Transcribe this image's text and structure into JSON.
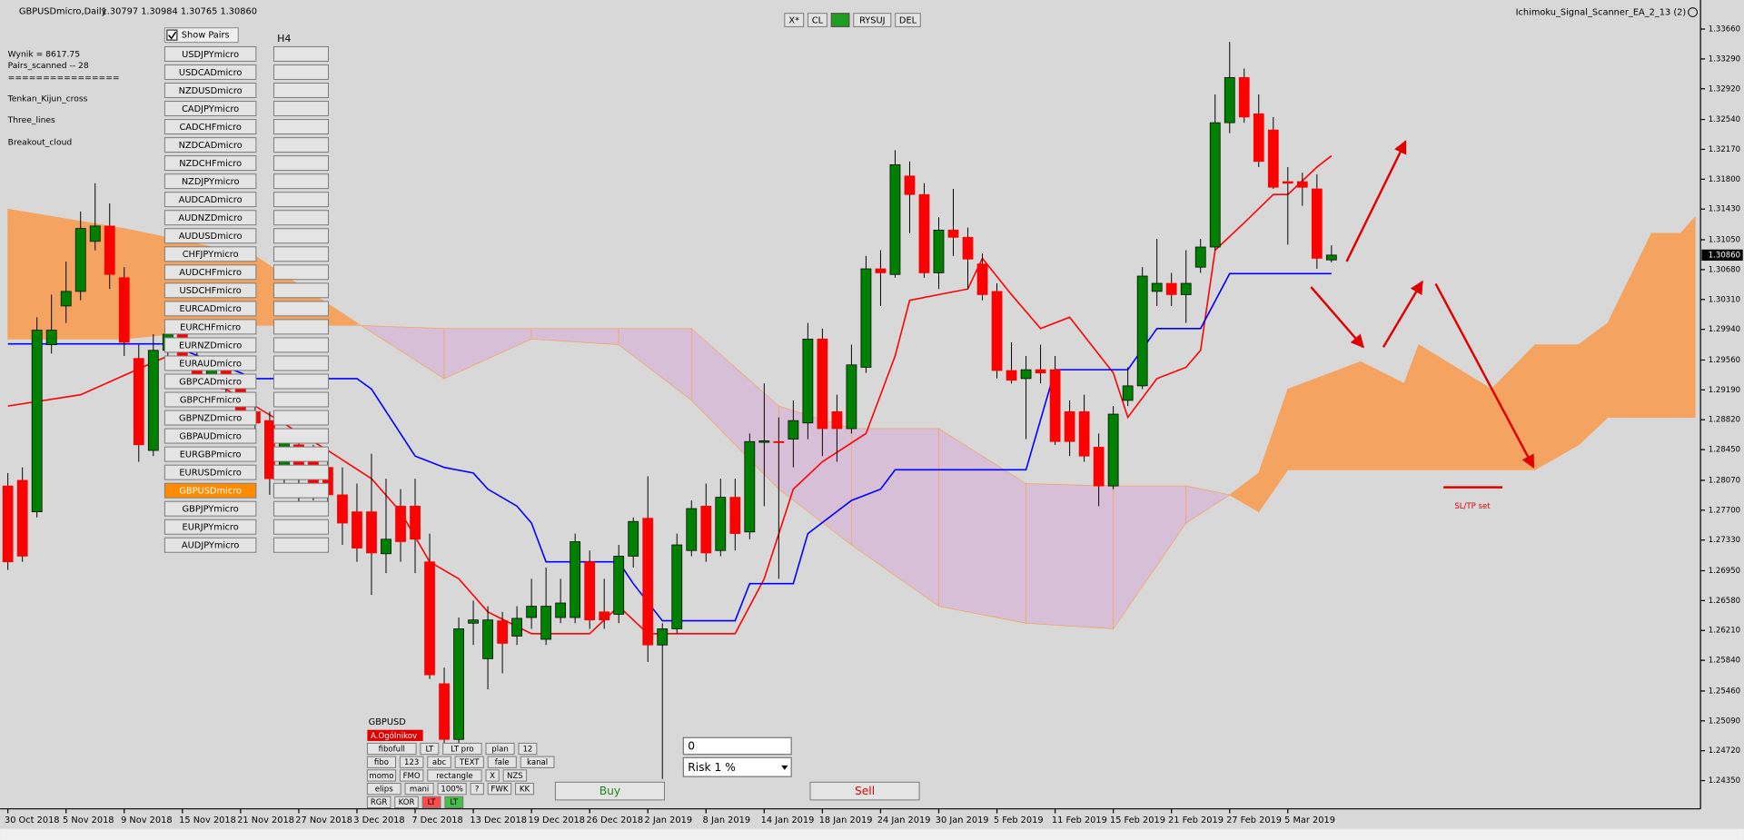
{
  "header": {
    "symbol": "GBPUSDmicro,Daily",
    "prices": "1.30797 1.30984 1.30765 1.30860",
    "ea": "Ichimoku_Signal_Scanner_EA_2_13 (2)"
  },
  "toolbar": [
    "X*",
    "CL",
    "RYSUJ",
    "DEL"
  ],
  "scanner": {
    "results": [
      "Wynik = 8617.75",
      "Pairs_scanned -- 28",
      "================",
      "Tenkan_Kijun_cross",
      "Three_lines",
      "Breakout_cloud"
    ],
    "show_pairs": "Show Pairs",
    "timeframe": "H4",
    "active": "GBPUSDmicro",
    "pairs": [
      "USDJPYmicro",
      "USDCADmicro",
      "NZDUSDmicro",
      "CADJPYmicro",
      "CADCHFmicro",
      "NZDCADmicro",
      "NZDCHFmicro",
      "NZDJPYmicro",
      "AUDCADmicro",
      "AUDNZDmicro",
      "AUDUSDmicro",
      "CHFJPYmicro",
      "AUDCHFmicro",
      "USDCHFmicro",
      "EURCADmicro",
      "EURCHFmicro",
      "EURNZDmicro",
      "EURAUDmicro",
      "GBPCADmicro",
      "GBPCHFmicro",
      "GBPNZDmicro",
      "GBPAUDmicro",
      "EURGBPmicro",
      "EURUSDmicro",
      "GBPUSDmicro",
      "GBPJPYmicro",
      "EURJPYmicro",
      "AUDJPYmicro"
    ]
  },
  "tools": {
    "symbol": "GBPUSD",
    "status": "A.Ogólnikov",
    "rows": [
      [
        "fibofull",
        "LT",
        "LT pro",
        "plan",
        "12"
      ],
      [
        "fibo",
        "123",
        "abc",
        "TEXT",
        "fale",
        "kanal"
      ],
      [
        "momo",
        "FMO",
        "rectangle",
        "X",
        "NZS"
      ],
      [
        "elips",
        "mani",
        "100%",
        "?",
        "FWK",
        "KK"
      ],
      [
        "RGR",
        "KOR",
        "LT",
        "LT"
      ]
    ]
  },
  "trade": {
    "lots": "0",
    "risk": "Risk 1 %",
    "buy": "Buy",
    "sell": "Sell"
  },
  "annotation": "SL/TP set",
  "chart_data": {
    "type": "candlestick",
    "up_color": "#008000",
    "down_color": "#ff0000",
    "categories": [
      "30 Oct 2018",
      null,
      null,
      null,
      "5 Nov 2018",
      null,
      null,
      null,
      "9 Nov 2018",
      null,
      null,
      null,
      "15 Nov 2018",
      null,
      null,
      null,
      "21 Nov 2018",
      null,
      null,
      null,
      "27 Nov 2018",
      null,
      null,
      null,
      "3 Dec 2018",
      null,
      null,
      null,
      "7 Dec 2018",
      null,
      null,
      null,
      "13 Dec 2018",
      null,
      null,
      null,
      "19 Dec 2018",
      null,
      null,
      null,
      "26 Dec 2018",
      null,
      null,
      null,
      "2 Jan 2019",
      null,
      null,
      null,
      "8 Jan 2019",
      null,
      null,
      null,
      "14 Jan 2019",
      null,
      null,
      null,
      "18 Jan 2019",
      null,
      null,
      null,
      "24 Jan 2019",
      null,
      null,
      null,
      "30 Jan 2019",
      null,
      null,
      null,
      "5 Feb 2019",
      null,
      null,
      null,
      "11 Feb 2019",
      null,
      null,
      null,
      "15 Feb 2019",
      null,
      null,
      null,
      "21 Feb 2019",
      null,
      null,
      null,
      "27 Feb 2019",
      null,
      null,
      null,
      "5 Mar 2019",
      null,
      null,
      null
    ],
    "candles": [
      [
        1.28,
        1.2816,
        1.2696,
        1.2706
      ],
      [
        1.2807,
        1.2823,
        1.2706,
        1.2713
      ],
      [
        1.2768,
        1.3009,
        1.2761,
        1.2993
      ],
      [
        1.2975,
        1.3037,
        1.2964,
        1.2993
      ],
      [
        1.3023,
        1.3078,
        1.3002,
        1.3041
      ],
      [
        1.3041,
        1.314,
        1.303,
        1.3119
      ],
      [
        1.3103,
        1.3175,
        1.3092,
        1.3122
      ],
      [
        1.3122,
        1.315,
        1.3044,
        1.3062
      ],
      [
        1.3058,
        1.3071,
        1.2961,
        1.2978
      ],
      [
        1.2958,
        1.2975,
        1.283,
        1.2851
      ],
      [
        1.2844,
        1.2988,
        1.2837,
        1.2968
      ],
      [
        1.2968,
        1.3002,
        1.2961,
        1.2988
      ],
      [
        1.2988,
        1.2995,
        1.2954,
        1.2961
      ],
      [
        1.2961,
        1.2975,
        1.2927,
        1.2933
      ],
      [
        1.2933,
        1.2961,
        1.2927,
        1.2954
      ],
      [
        1.2954,
        1.2961,
        1.2913,
        1.292
      ],
      [
        1.292,
        1.2933,
        1.2885,
        1.2892
      ],
      [
        1.2892,
        1.2906,
        1.2871,
        1.2878
      ],
      [
        1.2881,
        1.2892,
        1.2789,
        1.2809
      ],
      [
        1.2809,
        1.2865,
        1.2796,
        1.2858
      ],
      [
        1.2851,
        1.2865,
        1.2768,
        1.2809
      ],
      [
        1.2837,
        1.2851,
        1.2782,
        1.2796
      ],
      [
        1.2823,
        1.2837,
        1.2768,
        1.2789
      ],
      [
        1.2789,
        1.2823,
        1.2727,
        1.2754
      ],
      [
        1.2768,
        1.2803,
        1.2706,
        1.2723
      ],
      [
        1.2768,
        1.284,
        1.2665,
        1.2717
      ],
      [
        1.2716,
        1.2809,
        1.2692,
        1.2734
      ],
      [
        1.2775,
        1.2796,
        1.2706,
        1.2731
      ],
      [
        1.2775,
        1.2809,
        1.2692,
        1.2734
      ],
      [
        1.2706,
        1.2741,
        1.2561,
        1.2566
      ],
      [
        1.2555,
        1.2575,
        1.2481,
        1.2486
      ],
      [
        1.2486,
        1.2637,
        1.2481,
        1.2623
      ],
      [
        1.263,
        1.2658,
        1.2603,
        1.2634
      ],
      [
        1.2586,
        1.2651,
        1.2548,
        1.2634
      ],
      [
        1.2633,
        1.2644,
        1.2568,
        1.2605
      ],
      [
        1.2614,
        1.2651,
        1.2603,
        1.2636
      ],
      [
        1.2637,
        1.2685,
        1.2623,
        1.2651
      ],
      [
        1.261,
        1.2699,
        1.2603,
        1.2651
      ],
      [
        1.2637,
        1.2685,
        1.263,
        1.2655
      ],
      [
        1.2637,
        1.2741,
        1.263,
        1.2731
      ],
      [
        1.2706,
        1.272,
        1.2623,
        1.2634
      ],
      [
        1.2644,
        1.2685,
        1.2623,
        1.2634
      ],
      [
        1.2641,
        1.2727,
        1.263,
        1.2713
      ],
      [
        1.2713,
        1.2761,
        1.2699,
        1.2756
      ],
      [
        1.276,
        1.2812,
        1.2582,
        1.2603
      ],
      [
        1.2603,
        1.263,
        1.2437,
        1.2623
      ],
      [
        1.2623,
        1.2741,
        1.2617,
        1.2727
      ],
      [
        1.272,
        1.2782,
        1.2713,
        1.2772
      ],
      [
        1.2775,
        1.2803,
        1.2706,
        1.2717
      ],
      [
        1.272,
        1.2809,
        1.2713,
        1.2786
      ],
      [
        1.2786,
        1.2809,
        1.272,
        1.2741
      ],
      [
        1.2743,
        1.2865,
        1.2734,
        1.2855
      ],
      [
        1.2854,
        1.2927,
        1.2775,
        1.2856
      ],
      [
        1.2855,
        1.2885,
        1.2685,
        1.2854
      ],
      [
        1.2858,
        1.2906,
        1.2823,
        1.2881
      ],
      [
        1.2878,
        1.3002,
        1.2858,
        1.2982
      ],
      [
        1.2982,
        1.2995,
        1.2837,
        1.2871
      ],
      [
        1.2892,
        1.2913,
        1.283,
        1.2871
      ],
      [
        1.2871,
        1.2975,
        1.2865,
        1.295
      ],
      [
        1.2947,
        1.3085,
        1.294,
        1.3069
      ],
      [
        1.3069,
        1.3092,
        1.3023,
        1.3064
      ],
      [
        1.3062,
        1.3216,
        1.3058,
        1.3198
      ],
      [
        1.3184,
        1.3202,
        1.3113,
        1.3161
      ],
      [
        1.3161,
        1.3175,
        1.3058,
        1.3064
      ],
      [
        1.3064,
        1.3133,
        1.3044,
        1.3117
      ],
      [
        1.3117,
        1.3168,
        1.3085,
        1.3108
      ],
      [
        1.3108,
        1.312,
        1.3044,
        1.3081
      ],
      [
        1.3075,
        1.3088,
        1.303,
        1.3037
      ],
      [
        1.3041,
        1.3051,
        1.2933,
        1.2943
      ],
      [
        1.2943,
        1.2978,
        1.2927,
        1.2931
      ],
      [
        1.2933,
        1.2961,
        1.2858,
        1.2944
      ],
      [
        1.2944,
        1.2975,
        1.2927,
        1.294
      ],
      [
        1.2944,
        1.2961,
        1.2851,
        1.2855
      ],
      [
        1.2892,
        1.2906,
        1.2837,
        1.2855
      ],
      [
        1.2892,
        1.2913,
        1.283,
        1.2837
      ],
      [
        1.2848,
        1.2865,
        1.2775,
        1.28
      ],
      [
        1.28,
        1.2899,
        1.2796,
        1.2889
      ],
      [
        1.2906,
        1.2947,
        1.2899,
        1.2924
      ],
      [
        1.2924,
        1.3071,
        1.292,
        1.306
      ],
      [
        1.3041,
        1.3106,
        1.3023,
        1.3051
      ],
      [
        1.3051,
        1.3064,
        1.3023,
        1.3037
      ],
      [
        1.3037,
        1.3092,
        1.3002,
        1.3051
      ],
      [
        1.3071,
        1.3106,
        1.3064,
        1.3096
      ],
      [
        1.3096,
        1.3285,
        1.3092,
        1.325
      ],
      [
        1.325,
        1.335,
        1.3237,
        1.3306
      ],
      [
        1.3306,
        1.3317,
        1.325,
        1.3257
      ],
      [
        1.3261,
        1.3285,
        1.3195,
        1.3202
      ],
      [
        1.3241,
        1.3257,
        1.3168,
        1.317
      ],
      [
        1.3177,
        1.3195,
        1.3099,
        1.3175
      ],
      [
        1.3177,
        1.3188,
        1.3147,
        1.317
      ],
      [
        1.3168,
        1.3186,
        1.3069,
        1.3082
      ],
      [
        1.308,
        1.3098,
        1.3077,
        1.3086
      ]
    ],
    "lines": [
      {
        "color": "#ff0000",
        "x": [
          0,
          5,
          11,
          17,
          22,
          25,
          27,
          29,
          31,
          33,
          36,
          40,
          42,
          44,
          50,
          52,
          54,
          56,
          59,
          61,
          62,
          66,
          67,
          69,
          71,
          73,
          76,
          77,
          79,
          81,
          82,
          83,
          85,
          87,
          88,
          90,
          91
        ],
        "values": [
          1.2899,
          1.2913,
          1.2961,
          1.2899,
          1.2844,
          1.2809,
          1.2768,
          1.2706,
          1.2685,
          1.2644,
          1.2617,
          1.2617,
          1.2651,
          1.2617,
          1.2617,
          1.2685,
          1.2796,
          1.283,
          1.2865,
          1.2961,
          1.303,
          1.3044,
          1.3082,
          1.3037,
          1.2995,
          1.3009,
          1.294,
          1.2885,
          1.2933,
          1.2947,
          1.2968,
          1.3092,
          1.3126,
          1.3161,
          1.3161,
          1.3195,
          1.3209
        ]
      },
      {
        "color": "#0000ff",
        "x": [
          0,
          11,
          17,
          24,
          25,
          28,
          30,
          32,
          33,
          35,
          36,
          37,
          42,
          43,
          45,
          50,
          51,
          54,
          55,
          58,
          60,
          61,
          70,
          72,
          77,
          79,
          82,
          84,
          91
        ],
        "values": [
          1.2976,
          1.2976,
          1.2933,
          1.2933,
          1.292,
          1.2837,
          1.2823,
          1.2816,
          1.2796,
          1.2775,
          1.2754,
          1.2706,
          1.2706,
          1.2679,
          1.2633,
          1.2633,
          1.2679,
          1.2679,
          1.2741,
          1.2782,
          1.2796,
          1.282,
          1.282,
          1.2944,
          1.2944,
          1.2995,
          1.2995,
          1.3063,
          1.3063
        ]
      }
    ],
    "cloud": {
      "bull_color": "#f4a460",
      "bear_color": "#d8bfd8",
      "x": [
        0,
        8,
        17,
        24,
        30,
        36,
        42,
        47,
        53,
        58,
        64,
        70,
        76,
        81,
        84,
        86,
        88,
        93,
        96,
        97,
        102,
        105,
        108,
        110,
        113,
        115,
        116
      ],
      "span_a": [
        1.3143,
        1.3119,
        1.3085,
        1.3002,
        1.2933,
        1.2982,
        1.2975,
        1.2906,
        1.2796,
        1.2727,
        1.2651,
        1.263,
        1.2623,
        1.2754,
        1.2789,
        1.2816,
        1.292,
        1.2954,
        1.2927,
        1.2975,
        1.292,
        1.2975,
        1.2975,
        1.3002,
        1.3113,
        1.3113,
        1.3133
      ],
      "span_b": [
        1.2982,
        1.2982,
        1.2999,
        1.2999,
        1.2995,
        1.2995,
        1.2995,
        1.2995,
        1.2899,
        1.2871,
        1.2871,
        1.2803,
        1.28,
        1.28,
        1.2789,
        1.2768,
        1.282,
        1.282,
        1.282,
        1.282,
        1.282,
        1.282,
        1.2851,
        1.2885,
        1.2885,
        1.2885,
        1.2885
      ]
    },
    "ylim": [
      1.24,
      1.3402
    ],
    "yticks": [
      {
        "value": 1.3366,
        "label": "1.33660"
      },
      {
        "value": 1.3329,
        "label": "1.33290"
      },
      {
        "value": 1.3292,
        "label": "1.32920"
      },
      {
        "value": 1.3254,
        "label": "1.32540"
      },
      {
        "value": 1.3217,
        "label": "1.32170"
      },
      {
        "value": 1.318,
        "label": "1.31800"
      },
      {
        "value": 1.3143,
        "label": "1.31430"
      },
      {
        "value": 1.3105,
        "label": "1.31050"
      },
      {
        "value": 1.3068,
        "label": "1.30680"
      },
      {
        "value": 1.3031,
        "label": "1.30310"
      },
      {
        "value": 1.2994,
        "label": "1.29940"
      },
      {
        "value": 1.2956,
        "label": "1.29560"
      },
      {
        "value": 1.2919,
        "label": "1.29190"
      },
      {
        "value": 1.2882,
        "label": "1.28820"
      },
      {
        "value": 1.2845,
        "label": "1.28450"
      },
      {
        "value": 1.2807,
        "label": "1.28070"
      },
      {
        "value": 1.277,
        "label": "1.27700"
      },
      {
        "value": 1.2733,
        "label": "1.27330"
      },
      {
        "value": 1.2695,
        "label": "1.26950"
      },
      {
        "value": 1.2658,
        "label": "1.26580"
      },
      {
        "value": 1.2621,
        "label": "1.26210"
      },
      {
        "value": 1.2584,
        "label": "1.25840"
      },
      {
        "value": 1.2546,
        "label": "1.25460"
      },
      {
        "value": 1.2509,
        "label": "1.25090"
      },
      {
        "value": 1.2472,
        "label": "1.24720"
      },
      {
        "value": 1.2435,
        "label": "1.24350"
      }
    ],
    "current_price": {
      "value": 1.3086,
      "label": "1.30860"
    }
  }
}
